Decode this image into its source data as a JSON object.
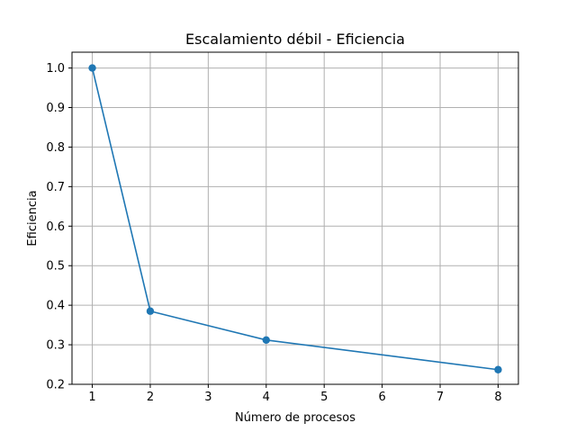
{
  "chart_data": {
    "type": "line",
    "title": "Escalamiento débil - Eficiencia",
    "xlabel": "Número de procesos",
    "ylabel": "Eficiencia",
    "x": [
      1,
      2,
      4,
      8
    ],
    "series": [
      {
        "values": [
          1.0,
          0.385,
          0.312,
          0.237
        ],
        "color": "#1f77b4",
        "marker": "circle"
      }
    ],
    "xticks": [
      1,
      2,
      3,
      4,
      5,
      6,
      7,
      8
    ],
    "yticks": [
      0.2,
      0.3,
      0.4,
      0.5,
      0.6,
      0.7,
      0.8,
      0.9,
      1.0
    ],
    "xlim": [
      0.65,
      8.35
    ],
    "ylim": [
      0.2,
      1.04
    ],
    "grid": true,
    "legend": false
  }
}
